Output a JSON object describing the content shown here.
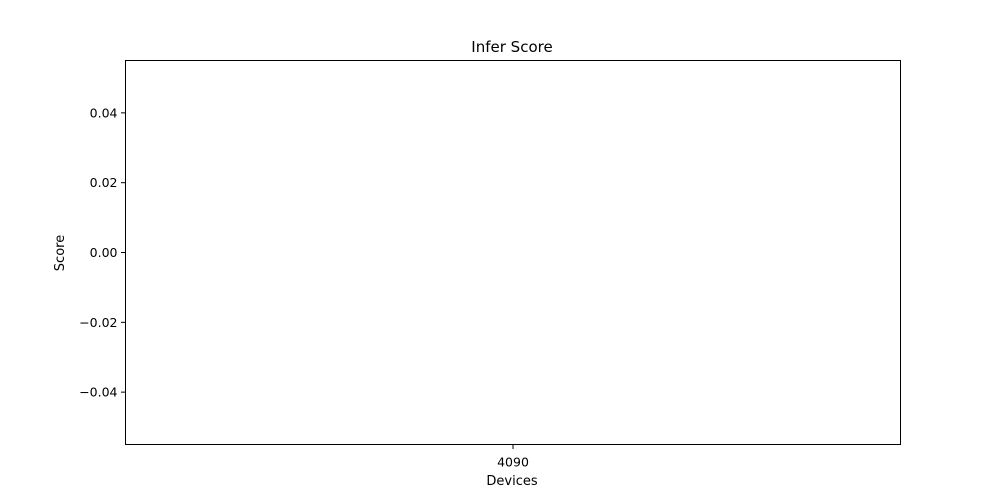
{
  "chart_data": {
    "type": "bar",
    "title": "Infer Score",
    "xlabel": "Devices",
    "ylabel": "Score",
    "categories": [
      "4090"
    ],
    "values": [
      0
    ],
    "ylim": [
      -0.055,
      0.055
    ],
    "yticks": [
      -0.04,
      -0.02,
      0.0,
      0.02,
      0.04
    ],
    "ytick_labels": [
      "−0.04",
      "−0.02",
      "0.00",
      "0.02",
      "0.04"
    ],
    "grid": false,
    "legend": "none"
  }
}
